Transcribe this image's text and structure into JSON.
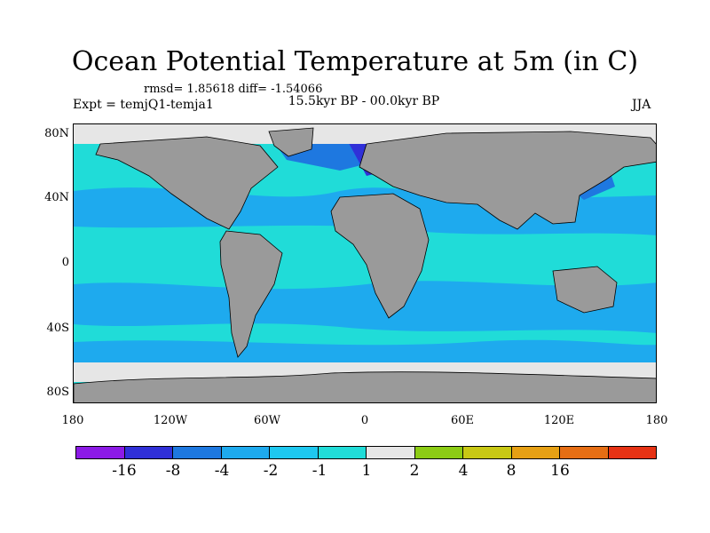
{
  "title": "Ocean Potential Temperature at 5m (in C)",
  "stats": "rmsd= 1.85618 diff= -1.54066",
  "expt": "Expt = temjQ1-temja1",
  "period": "15.5kyr BP - 00.0kyr BP",
  "season": "JJA",
  "lat_ticks": [
    "80N",
    "40N",
    "0",
    "40S",
    "80S"
  ],
  "lon_ticks": [
    "180",
    "120W",
    "60W",
    "0",
    "60E",
    "120E",
    "180"
  ],
  "colorbar": {
    "colors": [
      "#8c1ae6",
      "#3030d8",
      "#1e78e0",
      "#1eaaee",
      "#1ec8f0",
      "#20dcd8",
      "#e6e6e6",
      "#8ccc14",
      "#c8c814",
      "#e6a014",
      "#e66e14",
      "#e63214"
    ],
    "labels": [
      "-16",
      "-8",
      "-4",
      "-2",
      "-1",
      "1",
      "2",
      "4",
      "8",
      "16"
    ]
  },
  "map": {
    "land_color": "#9a9a9a",
    "ocean_color": "#1ec8f0"
  }
}
